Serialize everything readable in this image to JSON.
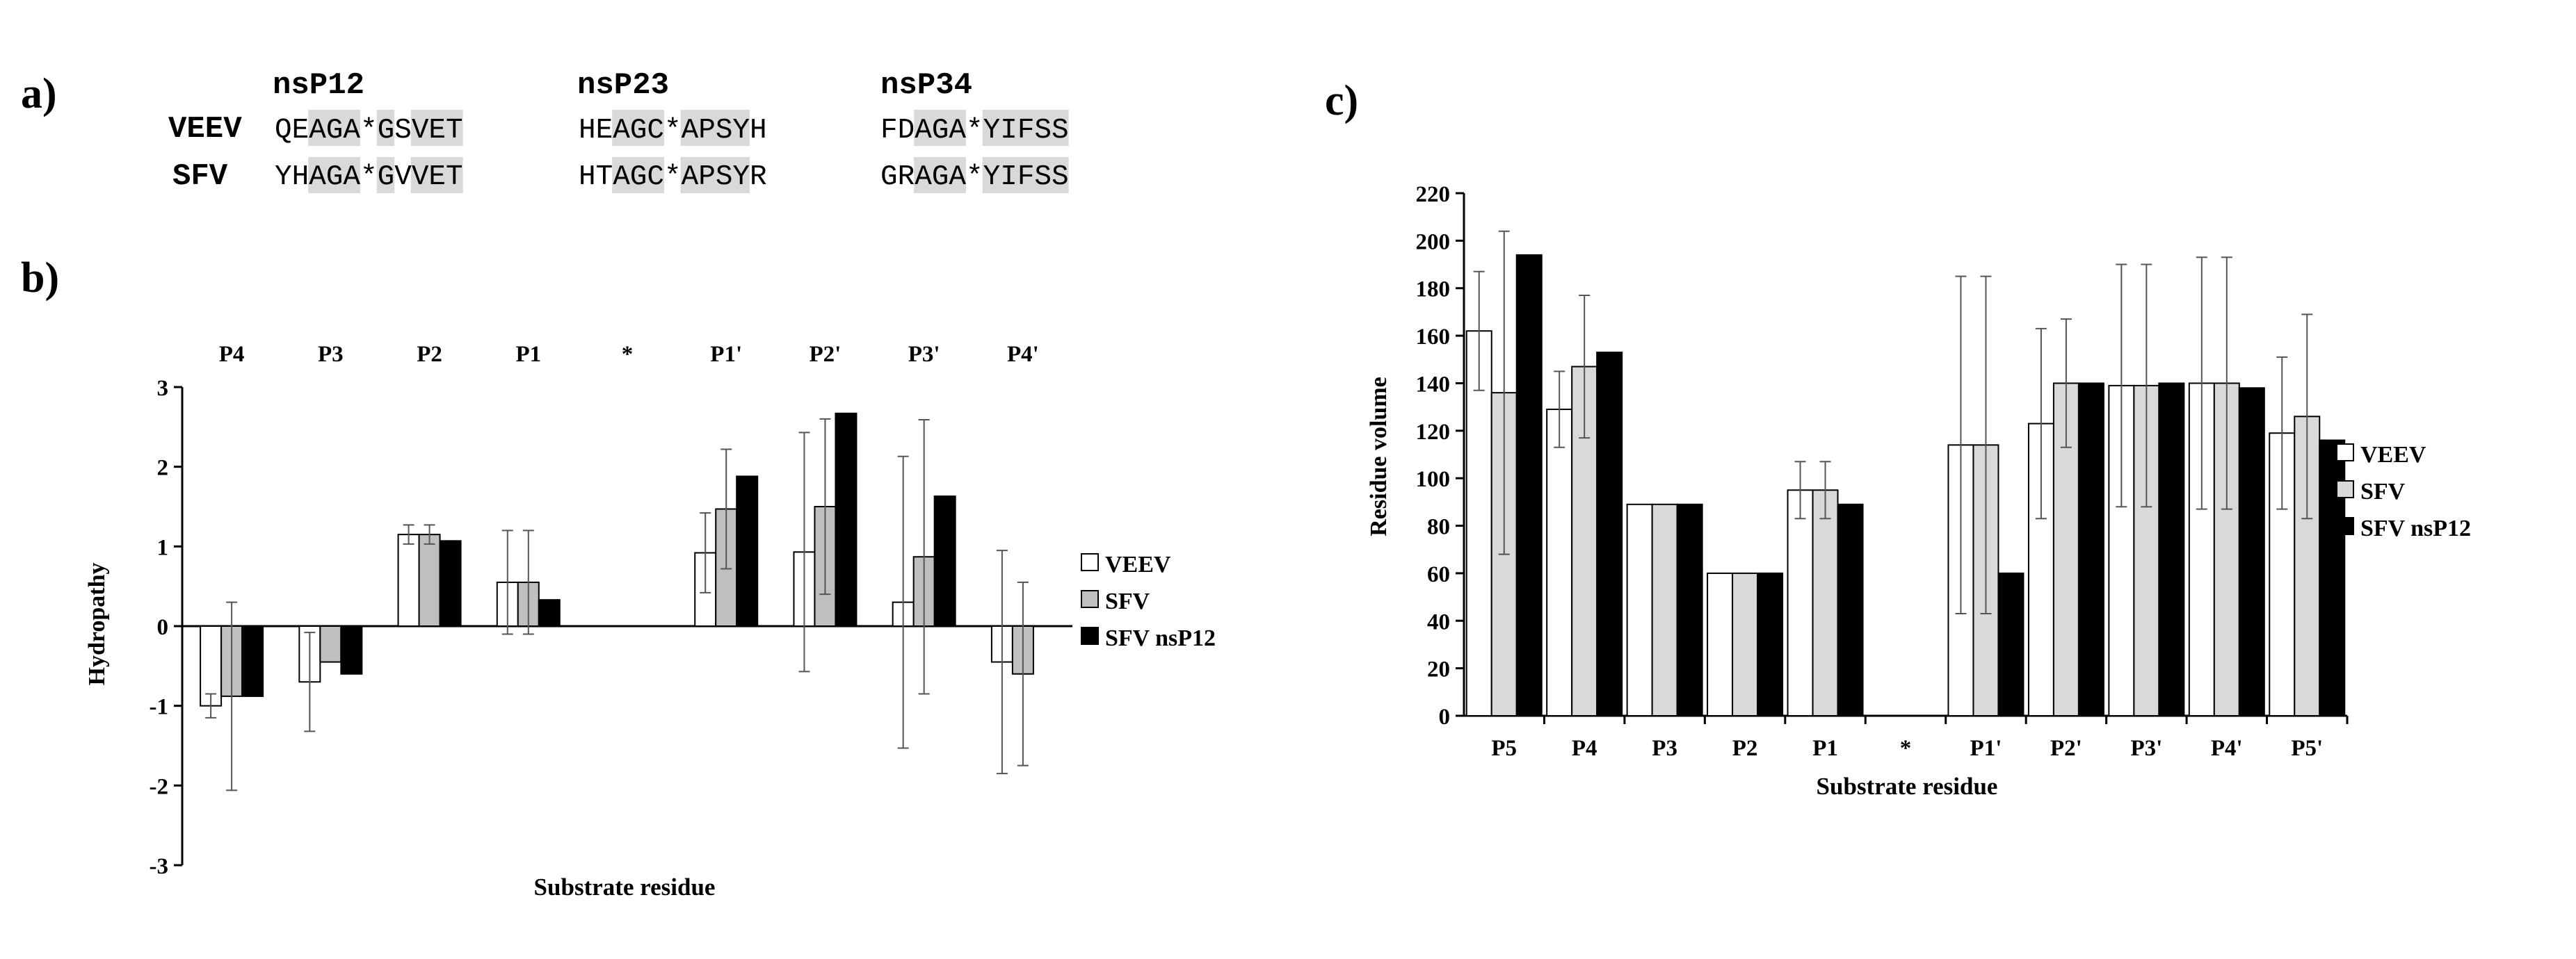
{
  "panels": {
    "a": {
      "label": "a)",
      "groups": [
        {
          "title": "nsP12",
          "rows": [
            "QEAGA*GSVET",
            "YHAGA*GVVET"
          ],
          "shaded": [
            2,
            3,
            4,
            6,
            8,
            9,
            10
          ]
        },
        {
          "title": "nsP23",
          "rows": [
            "HEAGC*APSYH",
            "HTAGC*APSYR"
          ],
          "shaded": [
            2,
            3,
            4,
            6,
            7,
            8,
            9
          ]
        },
        {
          "title": "nsP34",
          "rows": [
            "FDAGA*YIFSS",
            "GRAGA*YIFSS"
          ],
          "shaded": [
            2,
            3,
            4,
            6,
            7,
            8,
            9,
            10
          ]
        }
      ],
      "row_labels": [
        "VEEV",
        "SFV"
      ]
    },
    "b": {
      "label": "b)"
    },
    "c": {
      "label": "c)"
    }
  },
  "chart_data": [
    {
      "panel": "b",
      "type": "bar",
      "categories": [
        "P4",
        "P3",
        "P2",
        "P1",
        "*",
        "P1'",
        "P2'",
        "P3'",
        "P4'"
      ],
      "xlabel": "Substrate residue",
      "ylabel": "Hydropathy",
      "ylim": [
        -3,
        3
      ],
      "yticks": [
        -3,
        -2,
        -1,
        0,
        1,
        2,
        3
      ],
      "category_labels_position": "top",
      "legend_position": "right",
      "series": [
        {
          "name": "VEEV",
          "color": "#ffffff",
          "values": [
            -1.0,
            -0.7,
            1.15,
            0.55,
            null,
            0.92,
            0.93,
            0.3,
            -0.45
          ],
          "error": [
            0.15,
            0.62,
            0.12,
            0.65,
            null,
            0.5,
            1.5,
            1.83,
            1.4
          ]
        },
        {
          "name": "SFV",
          "color": "#bfbfbf",
          "values": [
            -0.88,
            -0.45,
            1.15,
            0.55,
            null,
            1.47,
            1.5,
            0.87,
            -0.6
          ],
          "error": [
            1.18,
            null,
            0.12,
            0.65,
            null,
            0.75,
            1.1,
            1.72,
            1.15
          ]
        },
        {
          "name": "SFV nsP12",
          "color": "#000000",
          "values": [
            -0.88,
            -0.6,
            1.07,
            0.33,
            null,
            1.88,
            2.67,
            1.63,
            null
          ],
          "error": [
            null,
            null,
            null,
            null,
            null,
            null,
            null,
            null,
            null
          ]
        }
      ]
    },
    {
      "panel": "c",
      "type": "bar",
      "categories": [
        "P5",
        "P4",
        "P3",
        "P2",
        "P1",
        "*",
        "P1'",
        "P2'",
        "P3'",
        "P4'",
        "P5'"
      ],
      "xlabel": "Substrate residue",
      "ylabel": "Residue volume",
      "ylim": [
        0,
        220
      ],
      "yticks": [
        0,
        20,
        40,
        60,
        80,
        100,
        120,
        140,
        160,
        180,
        200,
        220
      ],
      "legend_position": "right",
      "series": [
        {
          "name": "VEEV",
          "color": "#ffffff",
          "values": [
            162,
            129,
            89,
            60,
            95,
            null,
            114,
            123,
            139,
            140,
            119
          ],
          "error": [
            25,
            16,
            null,
            null,
            12,
            null,
            71,
            40,
            51,
            53,
            32
          ]
        },
        {
          "name": "SFV",
          "color": "#d9d9d9",
          "values": [
            136,
            147,
            89,
            60,
            95,
            null,
            114,
            140,
            139,
            140,
            126
          ],
          "error": [
            68,
            30,
            null,
            null,
            12,
            null,
            71,
            27,
            51,
            53,
            43
          ]
        },
        {
          "name": "SFV nsP12",
          "color": "#000000",
          "values": [
            194,
            153,
            89,
            60,
            89,
            null,
            60,
            140,
            140,
            138,
            116
          ],
          "error": [
            null,
            null,
            null,
            null,
            null,
            null,
            null,
            null,
            null,
            null,
            null
          ]
        }
      ]
    }
  ]
}
